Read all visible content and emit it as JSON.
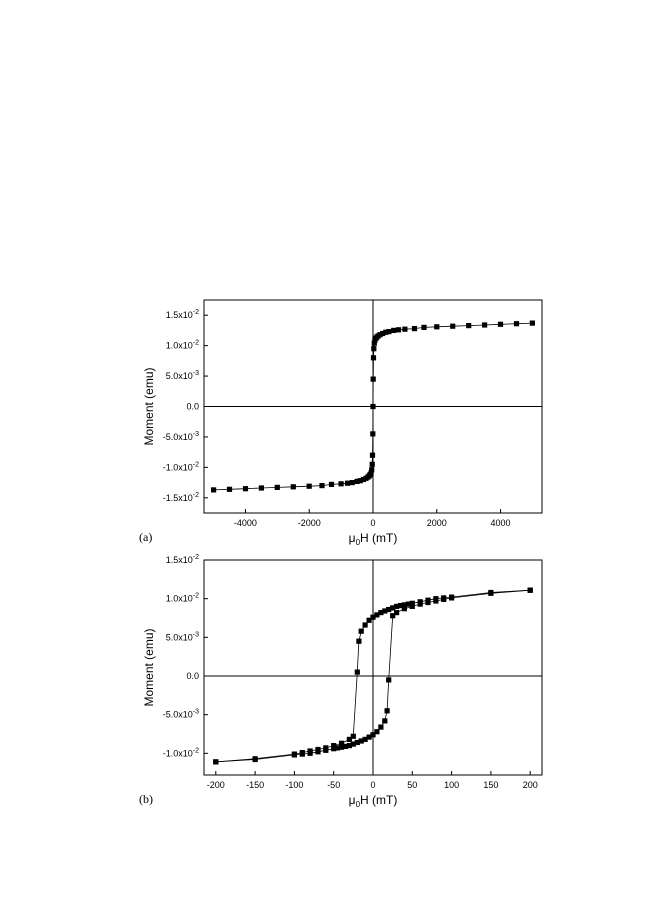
{
  "figure": {
    "panel_labels": [
      "(a)",
      "(b)"
    ]
  },
  "chart_data": [
    {
      "type": "scatter",
      "panel": "(a)",
      "xlabel": {
        "prefix": "μ",
        "sub": "0",
        "rest": "H (mT)"
      },
      "ylabel": "Moment (emu)",
      "xlim": [
        -5300,
        5300
      ],
      "ylim": [
        -0.0175,
        0.0175
      ],
      "xticks": [
        -4000,
        -2000,
        0,
        2000,
        4000
      ],
      "yticks": [
        {
          "v": -0.015,
          "m": "-1.5x10",
          "e": "-2"
        },
        {
          "v": -0.01,
          "m": "-1.0x10",
          "e": "-2"
        },
        {
          "v": -0.005,
          "m": "-5.0x10",
          "e": "-3"
        },
        {
          "v": 0.0,
          "m": "0.0",
          "e": ""
        },
        {
          "v": 0.005,
          "m": "5.0x10",
          "e": "-3"
        },
        {
          "v": 0.01,
          "m": "1.0x10",
          "e": "-2"
        },
        {
          "v": 0.015,
          "m": "1.5x10",
          "e": "-2"
        }
      ],
      "zero_lines": true,
      "marker_color": "#000000",
      "line_color": "#000000",
      "series": [
        {
          "x": [
            -5000,
            -4500,
            -4000,
            -3500,
            -3000,
            -2500,
            -2000,
            -1600,
            -1300,
            -1000,
            -800,
            -650,
            -500,
            -400,
            -300,
            -220,
            -160,
            -120,
            -90,
            -60,
            -40,
            -25,
            -15,
            -5,
            0,
            5,
            15,
            25,
            40,
            60,
            90,
            120,
            160,
            220,
            300,
            400,
            500,
            650,
            800,
            1000,
            1300,
            1600,
            2000,
            2500,
            3000,
            3500,
            4000,
            4500,
            5000
          ],
          "y": [
            -0.0137,
            -0.0136,
            -0.0135,
            -0.0134,
            -0.0133,
            -0.0132,
            -0.0131,
            -0.013,
            -0.0128,
            -0.0127,
            -0.0126,
            -0.0125,
            -0.0123,
            -0.0122,
            -0.012,
            -0.0118,
            -0.0116,
            -0.0114,
            -0.0112,
            -0.0109,
            -0.0104,
            -0.0095,
            -0.008,
            -0.0045,
            0.0,
            0.0045,
            0.008,
            0.0095,
            0.0104,
            0.0109,
            0.0112,
            0.0114,
            0.0116,
            0.0118,
            0.012,
            0.0122,
            0.0123,
            0.0125,
            0.0126,
            0.0127,
            0.0128,
            0.013,
            0.0131,
            0.0132,
            0.0133,
            0.0134,
            0.0135,
            0.0136,
            0.0137
          ]
        }
      ]
    },
    {
      "type": "scatter",
      "panel": "(b)",
      "xlabel": {
        "prefix": "μ",
        "sub": "0",
        "rest": "H (mT)"
      },
      "ylabel": "Moment (emu)",
      "xlim": [
        -215,
        215
      ],
      "ylim": [
        -0.0128,
        0.015
      ],
      "xticks": [
        -200,
        -150,
        -100,
        -50,
        0,
        50,
        100,
        150,
        200
      ],
      "yticks": [
        {
          "v": -0.01,
          "m": "-1.0x10",
          "e": "-2"
        },
        {
          "v": -0.005,
          "m": "-5.0x10",
          "e": "-3"
        },
        {
          "v": 0.0,
          "m": "0.0",
          "e": ""
        },
        {
          "v": 0.005,
          "m": "5.0x10",
          "e": "-3"
        },
        {
          "v": 0.01,
          "m": "1.0x10",
          "e": "-2"
        },
        {
          "v": 0.015,
          "m": "1.5x10",
          "e": "-2"
        }
      ],
      "zero_lines": true,
      "marker_color": "#000000",
      "line_color": "#000000",
      "series": [
        {
          "x": [
            200,
            150,
            100,
            90,
            80,
            70,
            60,
            50,
            45,
            40,
            35,
            30,
            25,
            20,
            15,
            10,
            5,
            0,
            -5,
            -10,
            -15,
            -18,
            -20,
            -25,
            -30,
            -40,
            -50,
            -60,
            -70,
            -80,
            -90,
            -100,
            -150,
            -200
          ],
          "y": [
            0.0111,
            0.0108,
            0.0102,
            0.0101,
            0.01,
            0.0098,
            0.0096,
            0.0094,
            0.0093,
            0.0092,
            0.0091,
            0.009,
            0.0088,
            0.0086,
            0.0084,
            0.0082,
            0.0079,
            0.0076,
            0.0072,
            0.0066,
            0.0058,
            0.0045,
            0.0005,
            -0.0078,
            -0.0082,
            -0.0087,
            -0.009,
            -0.0093,
            -0.0095,
            -0.0097,
            -0.0099,
            -0.0101,
            -0.0107,
            -0.0111
          ]
        },
        {
          "x": [
            -200,
            -150,
            -100,
            -90,
            -80,
            -70,
            -60,
            -50,
            -45,
            -40,
            -35,
            -30,
            -25,
            -20,
            -15,
            -10,
            -5,
            0,
            5,
            10,
            15,
            18,
            20,
            25,
            30,
            40,
            50,
            60,
            70,
            80,
            90,
            100,
            150,
            200
          ],
          "y": [
            -0.0111,
            -0.0108,
            -0.0102,
            -0.0101,
            -0.01,
            -0.0098,
            -0.0096,
            -0.0094,
            -0.0093,
            -0.0092,
            -0.0091,
            -0.009,
            -0.0088,
            -0.0086,
            -0.0084,
            -0.0082,
            -0.0079,
            -0.0076,
            -0.0072,
            -0.0066,
            -0.0058,
            -0.0045,
            -0.0005,
            0.0078,
            0.0082,
            0.0087,
            0.009,
            0.0093,
            0.0095,
            0.0097,
            0.0099,
            0.0101,
            0.0107,
            0.0111
          ]
        }
      ]
    }
  ]
}
